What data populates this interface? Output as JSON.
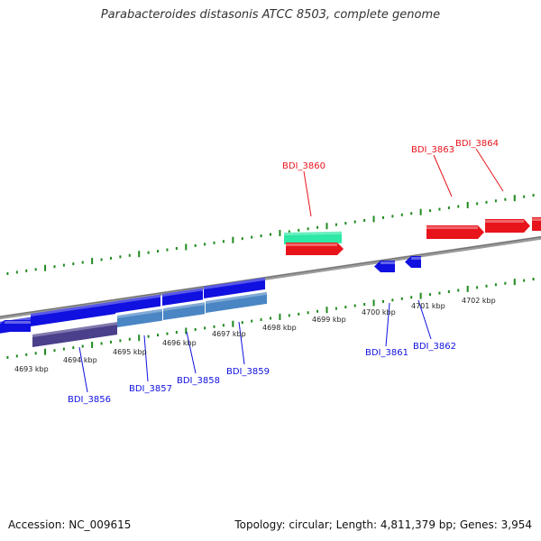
{
  "title": "Parabacteroides distasonis ATCC 8503, complete genome",
  "footer": {
    "accession": "Accession: NC_009615",
    "summary": "Topology: circular; Length: 4,811,379 bp; Genes: 3,954"
  },
  "colors": {
    "axis": "#7f7f7f",
    "ticks": "#1f8a1f",
    "forward_gene": "#e8141b",
    "reverse_gene": "#1010e0",
    "rna_gene": "#2ee8a6",
    "feature_dark": "#4a3f8a",
    "feature_light": "#4a86c4"
  },
  "kbp_labels": [
    "4693 kbp",
    "4694 kbp",
    "4695 kbp",
    "4696 kbp",
    "4697 kbp",
    "4698 kbp",
    "4699 kbp",
    "4700 kbp",
    "4701 kbp",
    "4702 kbp"
  ],
  "gene_labels": {
    "top": [
      "BDI_3860",
      "BDI_3863",
      "BDI_3864"
    ],
    "bottom": [
      "BDI_3856",
      "BDI_3857",
      "BDI_3858",
      "BDI_3859",
      "BDI_3861",
      "BDI_3862"
    ]
  }
}
